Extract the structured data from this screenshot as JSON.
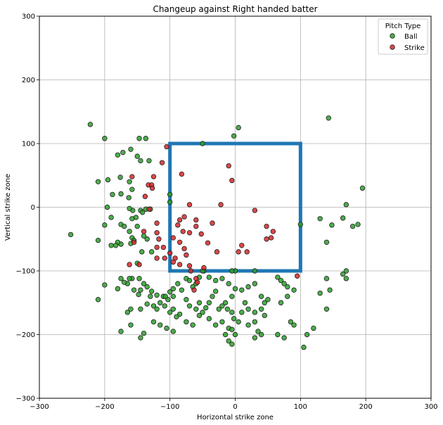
{
  "chart_data": {
    "type": "scatter",
    "title": "Changeup against Right handed batter",
    "xlabel": "Horizontal strike zone",
    "ylabel": "Vertical strike zone",
    "xlim": [
      -300,
      300
    ],
    "ylim": [
      -300,
      300
    ],
    "xticks": [
      "−300",
      "−200",
      "−100",
      "0",
      "100",
      "200",
      "300"
    ],
    "yticks": [
      "−300",
      "−200",
      "−100",
      "0",
      "100",
      "200",
      "300"
    ],
    "grid": true,
    "legend": {
      "title": "Pitch Type",
      "position": "top-right",
      "entries": [
        "Ball",
        "Strike"
      ]
    },
    "strike_zone": {
      "x": [
        -100,
        100
      ],
      "y": [
        -100,
        100
      ],
      "color": "#1f77b4"
    },
    "series": [
      {
        "name": "Ball",
        "color": "#2ca02c",
        "points": [
          [
            -222,
            130
          ],
          [
            -200,
            108
          ],
          [
            -147,
            108
          ],
          [
            -137,
            108
          ],
          [
            -180,
            82
          ],
          [
            -172,
            86
          ],
          [
            -160,
            91
          ],
          [
            -150,
            80
          ],
          [
            -145,
            73
          ],
          [
            -132,
            73
          ],
          [
            -210,
            40
          ],
          [
            -195,
            43
          ],
          [
            -188,
            20
          ],
          [
            -175,
            21
          ],
          [
            -163,
            15
          ],
          [
            -158,
            28
          ],
          [
            -162,
            40
          ],
          [
            -176,
            47
          ],
          [
            -196,
            0
          ],
          [
            -190,
            -16
          ],
          [
            -200,
            -28
          ],
          [
            -210,
            -52
          ],
          [
            -252,
            -43
          ],
          [
            -175,
            -27
          ],
          [
            -170,
            -30
          ],
          [
            -162,
            -38
          ],
          [
            -160,
            -57
          ],
          [
            -158,
            -48
          ],
          [
            -155,
            -52
          ],
          [
            -150,
            -30
          ],
          [
            -145,
            -5
          ],
          [
            -142,
            -8
          ],
          [
            -137,
            -3
          ],
          [
            -130,
            -3
          ],
          [
            -140,
            -45
          ],
          [
            -135,
            -50
          ],
          [
            -128,
            -70
          ],
          [
            -157,
            -5
          ],
          [
            -152,
            -16
          ],
          [
            -158,
            -18
          ],
          [
            -162,
            -2
          ],
          [
            -175,
            -58
          ],
          [
            -180,
            -55
          ],
          [
            -183,
            -60
          ],
          [
            -190,
            -60
          ],
          [
            -150,
            -88
          ],
          [
            -143,
            -70
          ],
          [
            -147,
            -112
          ],
          [
            -158,
            -112
          ],
          [
            -162,
            -112
          ],
          [
            -165,
            -120
          ],
          [
            -170,
            -118
          ],
          [
            -175,
            -112
          ],
          [
            -180,
            -128
          ],
          [
            -155,
            -130
          ],
          [
            -200,
            -122
          ],
          [
            -210,
            -145
          ],
          [
            -140,
            -120
          ],
          [
            -135,
            -125
          ],
          [
            -128,
            -132
          ],
          [
            -145,
            -130
          ],
          [
            -148,
            -137
          ],
          [
            -130,
            -140
          ],
          [
            -135,
            -152
          ],
          [
            -125,
            -155
          ],
          [
            -120,
            -160
          ],
          [
            -115,
            -150
          ],
          [
            -108,
            -155
          ],
          [
            -120,
            -138
          ],
          [
            -110,
            -140
          ],
          [
            -103,
            -145
          ],
          [
            -100,
            -133
          ],
          [
            -95,
            -128
          ],
          [
            -88,
            -120
          ],
          [
            -75,
            -112
          ],
          [
            -70,
            -115
          ],
          [
            -60,
            -120
          ],
          [
            -55,
            -110
          ],
          [
            -48,
            -100
          ],
          [
            -40,
            -110
          ],
          [
            -30,
            -115
          ],
          [
            -20,
            -112
          ],
          [
            -10,
            -120
          ],
          [
            0,
            -128
          ],
          [
            -82,
            -130
          ],
          [
            -65,
            -125
          ],
          [
            -75,
            -145
          ],
          [
            -70,
            -155
          ],
          [
            -55,
            -150
          ],
          [
            -60,
            -160
          ],
          [
            -45,
            -158
          ],
          [
            -50,
            -165
          ],
          [
            -40,
            -150
          ],
          [
            -35,
            -140
          ],
          [
            -30,
            -132
          ],
          [
            -25,
            -160
          ],
          [
            -20,
            -155
          ],
          [
            -12,
            -160
          ],
          [
            -5,
            -165
          ],
          [
            -2,
            -175
          ],
          [
            -20,
            -180
          ],
          [
            -30,
            -185
          ],
          [
            -40,
            -175
          ],
          [
            -55,
            -170
          ],
          [
            -65,
            -185
          ],
          [
            -75,
            -180
          ],
          [
            -85,
            -168
          ],
          [
            -90,
            -172
          ],
          [
            -95,
            -160
          ],
          [
            -100,
            -165
          ],
          [
            -95,
            -195
          ],
          [
            -105,
            -190
          ],
          [
            -115,
            -185
          ],
          [
            -125,
            -180
          ],
          [
            -140,
            -198
          ],
          [
            -145,
            -205
          ],
          [
            -160,
            -185
          ],
          [
            -175,
            -195
          ],
          [
            -160,
            -160
          ],
          [
            -165,
            -165
          ],
          [
            -145,
            -160
          ],
          [
            -15,
            -150
          ],
          [
            -5,
            -140
          ],
          [
            10,
            -130
          ],
          [
            20,
            -125
          ],
          [
            30,
            -120
          ],
          [
            40,
            -140
          ],
          [
            15,
            -150
          ],
          [
            20,
            -160
          ],
          [
            10,
            -165
          ],
          [
            -10,
            -190
          ],
          [
            -5,
            -192
          ],
          [
            0,
            -200
          ],
          [
            -10,
            -210
          ],
          [
            -5,
            -215
          ],
          [
            -15,
            -200
          ],
          [
            5,
            -180
          ],
          [
            20,
            -185
          ],
          [
            30,
            -180
          ],
          [
            45,
            -150
          ],
          [
            50,
            -145
          ],
          [
            70,
            -150
          ],
          [
            75,
            -120
          ],
          [
            70,
            -115
          ],
          [
            80,
            -125
          ],
          [
            90,
            -130
          ],
          [
            80,
            -140
          ],
          [
            65,
            -110
          ],
          [
            40,
            -160
          ],
          [
            30,
            -165
          ],
          [
            45,
            -170
          ],
          [
            35,
            -195
          ],
          [
            40,
            -200
          ],
          [
            30,
            -205
          ],
          [
            65,
            -200
          ],
          [
            75,
            -205
          ],
          [
            85,
            -180
          ],
          [
            90,
            -185
          ],
          [
            110,
            -200
          ],
          [
            120,
            -190
          ],
          [
            105,
            -220
          ],
          [
            130,
            -135
          ],
          [
            140,
            -160
          ],
          [
            145,
            -130
          ],
          [
            165,
            -105
          ],
          [
            170,
            -100
          ],
          [
            170,
            -112
          ],
          [
            140,
            -112
          ],
          [
            165,
            -17
          ],
          [
            140,
            -55
          ],
          [
            130,
            -18
          ],
          [
            148,
            -28
          ],
          [
            170,
            4
          ],
          [
            180,
            -30
          ],
          [
            188,
            -27
          ],
          [
            195,
            30
          ],
          [
            143,
            140
          ],
          [
            5,
            125
          ],
          [
            -2,
            112
          ],
          [
            -50,
            100
          ],
          [
            -100,
            20
          ],
          [
            -100,
            8
          ],
          [
            30,
            -100
          ],
          [
            0,
            -100
          ],
          [
            -50,
            -100
          ],
          [
            100,
            -27
          ],
          [
            -5,
            -100
          ],
          [
            -95,
            -140
          ],
          [
            -107,
            -140
          ]
        ]
      },
      {
        "name": "Strike",
        "color": "#d62728",
        "points": [
          [
            -105,
            95
          ],
          [
            -112,
            70
          ],
          [
            -125,
            48
          ],
          [
            -133,
            35
          ],
          [
            -128,
            35
          ],
          [
            -127,
            30
          ],
          [
            -158,
            48
          ],
          [
            -138,
            17
          ],
          [
            -132,
            -3
          ],
          [
            -82,
            52
          ],
          [
            -70,
            4
          ],
          [
            -10,
            65
          ],
          [
            -5,
            42
          ],
          [
            -22,
            4
          ],
          [
            -85,
            -20
          ],
          [
            -78,
            -15
          ],
          [
            -60,
            -20
          ],
          [
            -88,
            -28
          ],
          [
            -80,
            -38
          ],
          [
            -95,
            -48
          ],
          [
            -85,
            -55
          ],
          [
            -78,
            -65
          ],
          [
            -70,
            -40
          ],
          [
            -60,
            -30
          ],
          [
            -52,
            -42
          ],
          [
            -42,
            -56
          ],
          [
            -35,
            -25
          ],
          [
            -120,
            -25
          ],
          [
            -120,
            -40
          ],
          [
            -117,
            -50
          ],
          [
            -110,
            -63
          ],
          [
            -120,
            -63
          ],
          [
            -140,
            -38
          ],
          [
            -108,
            -80
          ],
          [
            -100,
            -72
          ],
          [
            -92,
            -80
          ],
          [
            -75,
            -75
          ],
          [
            -95,
            -86
          ],
          [
            -85,
            -90
          ],
          [
            -70,
            -92
          ],
          [
            -68,
            -100
          ],
          [
            -48,
            -95
          ],
          [
            -28,
            -70
          ],
          [
            -60,
            -112
          ],
          [
            -58,
            -118
          ],
          [
            -63,
            -130
          ],
          [
            -120,
            -80
          ],
          [
            -147,
            -90
          ],
          [
            -155,
            -55
          ],
          [
            -162,
            -90
          ],
          [
            30,
            -5
          ],
          [
            10,
            -60
          ],
          [
            5,
            -70
          ],
          [
            18,
            -70
          ],
          [
            48,
            -30
          ],
          [
            48,
            -50
          ],
          [
            55,
            -48
          ],
          [
            58,
            -38
          ],
          [
            95,
            -108
          ]
        ]
      }
    ]
  }
}
